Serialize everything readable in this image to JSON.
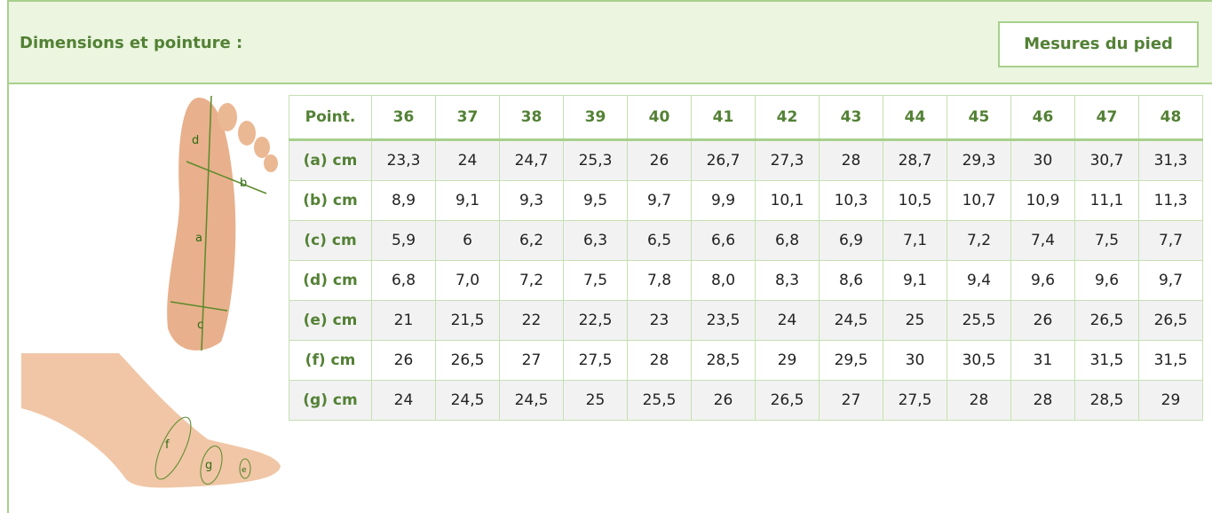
{
  "header": {
    "title": "Dimensions et pointure :",
    "button": "Mesures du pied"
  },
  "figures": {
    "sole_labels": [
      "d",
      "b",
      "a",
      "c"
    ],
    "side_labels": [
      "f",
      "g",
      "e"
    ]
  },
  "table": {
    "header": [
      "Point.",
      "36",
      "37",
      "38",
      "39",
      "40",
      "41",
      "42",
      "43",
      "44",
      "45",
      "46",
      "47",
      "48"
    ],
    "rows": [
      [
        "(a) cm",
        "23,3",
        "24",
        "24,7",
        "25,3",
        "26",
        "26,7",
        "27,3",
        "28",
        "28,7",
        "29,3",
        "30",
        "30,7",
        "31,3"
      ],
      [
        "(b) cm",
        "8,9",
        "9,1",
        "9,3",
        "9,5",
        "9,7",
        "9,9",
        "10,1",
        "10,3",
        "10,5",
        "10,7",
        "10,9",
        "11,1",
        "11,3"
      ],
      [
        "(c) cm",
        "5,9",
        "6",
        "6,2",
        "6,3",
        "6,5",
        "6,6",
        "6,8",
        "6,9",
        "7,1",
        "7,2",
        "7,4",
        "7,5",
        "7,7"
      ],
      [
        "(d) cm",
        "6,8",
        "7,0",
        "7,2",
        "7,5",
        "7,8",
        "8,0",
        "8,3",
        "8,6",
        "9,1",
        "9,4",
        "9,6",
        "9,6",
        "9,7"
      ],
      [
        "(e) cm",
        "21",
        "21,5",
        "22",
        "22,5",
        "23",
        "23,5",
        "24",
        "24,5",
        "25",
        "25,5",
        "26",
        "26,5",
        "26,5"
      ],
      [
        "(f) cm",
        "26",
        "26,5",
        "27",
        "27,5",
        "28",
        "28,5",
        "29",
        "29,5",
        "30",
        "30,5",
        "31",
        "31,5",
        "31,5"
      ],
      [
        "(g) cm",
        "24",
        "24,5",
        "24,5",
        "25",
        "25,5",
        "26",
        "26,5",
        "27",
        "27,5",
        "28",
        "28",
        "28,5",
        "29"
      ]
    ]
  }
}
